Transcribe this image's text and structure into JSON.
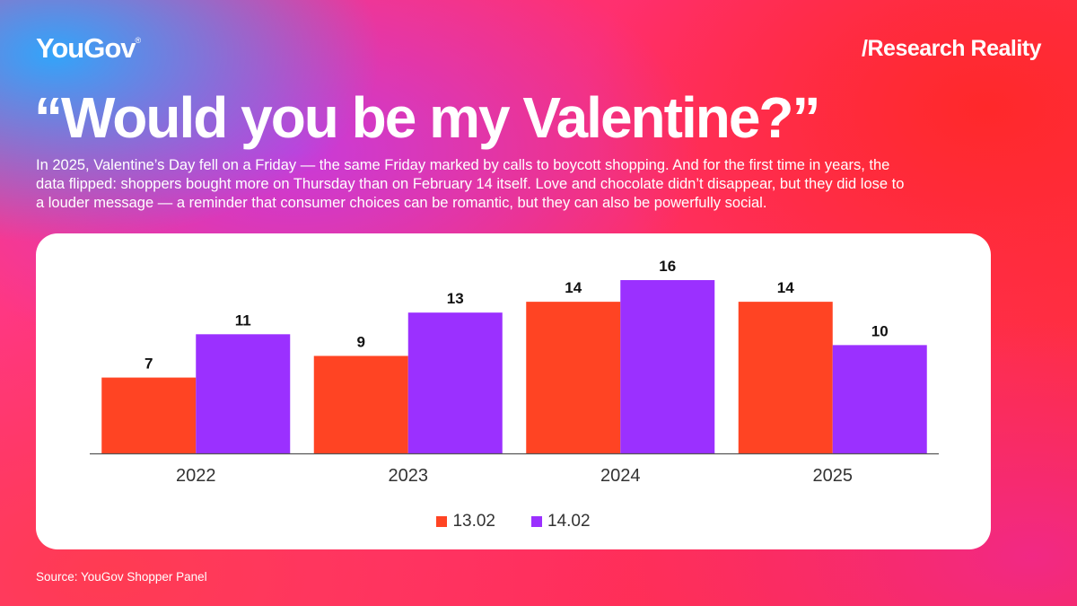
{
  "brand": {
    "logo": "YouGov",
    "logo_mark": "®",
    "tagline": "/Research Reality"
  },
  "headline": "“Would you be my Valentine?”",
  "intro": "In 2025, Valentine’s Day fell on a Friday — the same Friday marked by calls to boycott shopping. And for the first time in years, the data flipped: shoppers bought more on Thursday than on February 14 itself. Love and chocolate didn’t disappear, but they did lose to a louder message — a reminder that consumer choices can be romantic, but they can also be powerfully social.",
  "source": "Source: YouGov Shopper Panel",
  "colors": {
    "series1": "#ff4423",
    "series2": "#9b30ff"
  },
  "chart_data": {
    "type": "bar",
    "title": "",
    "xlabel": "",
    "ylabel": "",
    "categories": [
      "2022",
      "2023",
      "2024",
      "2025"
    ],
    "series": [
      {
        "name": "13.02",
        "values": [
          7,
          9,
          14,
          14
        ]
      },
      {
        "name": "14.02",
        "values": [
          11,
          13,
          16,
          10
        ]
      }
    ],
    "ylim": [
      0,
      16
    ],
    "grid": false,
    "legend": "bottom-center"
  }
}
